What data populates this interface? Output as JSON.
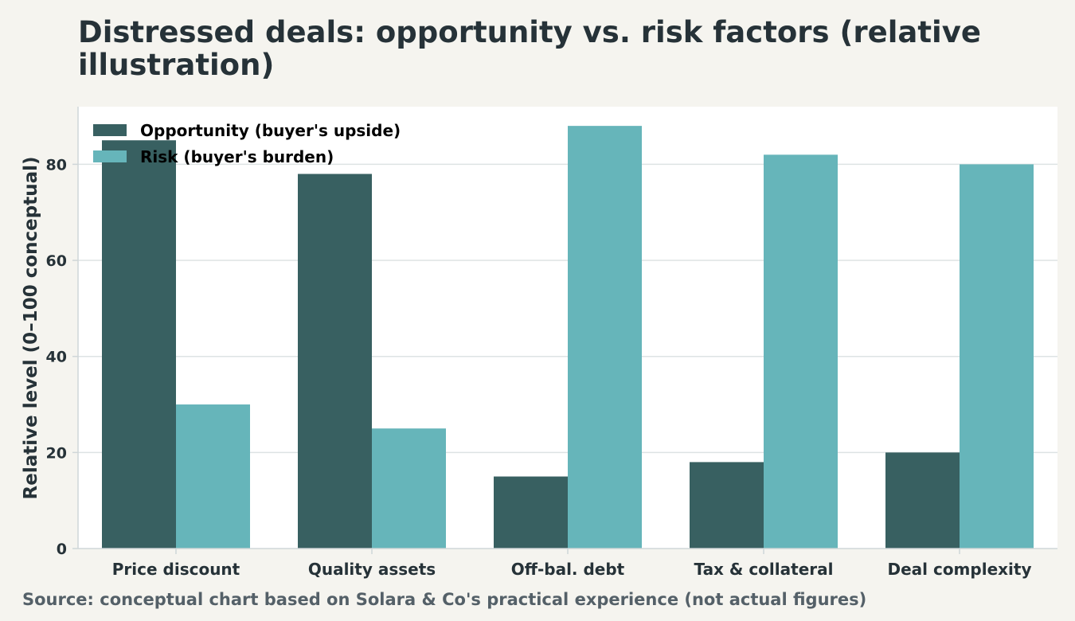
{
  "page": {
    "title": "Distressed deals: opportunity vs. risk factors (relative illustration)",
    "source": "Source: conceptual chart based on Solara & Co's practical experience (not actual figures)"
  },
  "chart_data": {
    "type": "bar",
    "title": "Distressed deals: opportunity vs. risk factors (relative illustration)",
    "xlabel": "",
    "ylabel": "Relative level (0–100 conceptual)",
    "ylim": [
      0,
      92
    ],
    "yticks": [
      0,
      20,
      40,
      60,
      80
    ],
    "grid": true,
    "legend_position": "top-left",
    "categories": [
      "Price discount",
      "Quality assets",
      "Off-bal. debt",
      "Tax & collateral",
      "Deal complexity"
    ],
    "series": [
      {
        "name": "Opportunity (buyer's upside)",
        "color": "#386061",
        "values": [
          85,
          78,
          15,
          18,
          20
        ]
      },
      {
        "name": "Risk (buyer's burden)",
        "color": "#66b5ba",
        "values": [
          30,
          25,
          88,
          82,
          80
        ]
      }
    ]
  }
}
